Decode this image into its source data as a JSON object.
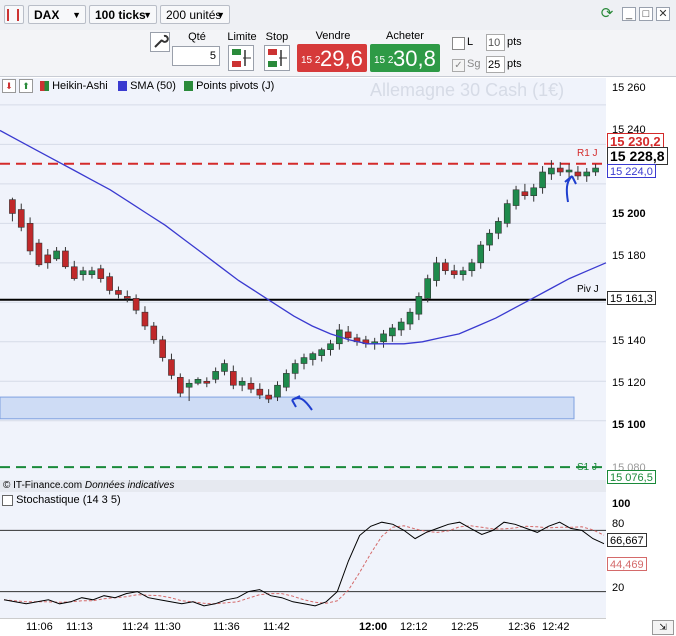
{
  "toolbar": {
    "symbol": "DAX",
    "interval": "100 ticks",
    "units": "200 unités"
  },
  "order": {
    "qty_label": "Qté",
    "qty_value": "5",
    "limit_label": "Limite",
    "stop_label": "Stop",
    "sell_label": "Vendre",
    "sell_prefix": "15 2",
    "sell_price": "29,6",
    "buy_label": "Acheter",
    "buy_prefix": "15 2",
    "buy_price": "30,8",
    "l_label": "L",
    "l_value": "10",
    "l_unit": "pts",
    "sg_label": "Sg",
    "sg_value": "25",
    "sg_unit": "pts"
  },
  "chart": {
    "watermark": "Allemagne 30 Cash (1€)",
    "legend": [
      "Heikin-Ashi",
      "SMA (50)",
      "Points pivots (J)"
    ],
    "copyright": "© IT-Finance.com",
    "copyright_note": "Données indicatives",
    "r1_label": "R1 J",
    "piv_label": "Piv J",
    "s1_label": "S1 J",
    "price_ticks": [
      "15 260",
      "15 240",
      "15 200",
      "15 180",
      "15 140",
      "15 120",
      "15 100",
      "15 080"
    ],
    "tag_last": "15 228,8",
    "tag_r1": "15 230,2",
    "tag_sma": "15 224,0",
    "tag_piv": "15 161,3",
    "tag_s1": "15 076,5",
    "colors": {
      "up": "#1e8a4c",
      "down": "#c0282a",
      "sma": "#3a3ad0",
      "pivot_r1": "#d42a2a",
      "pivot_s1": "#1a8a3a"
    }
  },
  "stoch": {
    "title": "Stochastique (14 3 5)",
    "ticks": [
      "100",
      "80",
      "20"
    ],
    "tag_k": "66,667",
    "tag_d": "44,469"
  },
  "x_ticks": [
    "11:06",
    "11:13",
    "11:24",
    "11:30",
    "11:36",
    "11:42",
    "12:00",
    "12:12",
    "12:25",
    "12:36",
    "12:42"
  ],
  "chart_data": {
    "type": "candlestick",
    "title": "Allemagne 30 Cash (1€)",
    "y_range": [
      15070,
      15265
    ],
    "ohlc": [
      [
        15212,
        15213,
        15201,
        15205
      ],
      [
        15207,
        15210,
        15196,
        15198
      ],
      [
        15200,
        15203,
        15184,
        15186
      ],
      [
        15190,
        15192,
        15178,
        15179
      ],
      [
        15184,
        15187,
        15177,
        15180
      ],
      [
        15182,
        15188,
        15181,
        15186
      ],
      [
        15186,
        15188,
        15177,
        15178
      ],
      [
        15178,
        15181,
        15171,
        15172
      ],
      [
        15174,
        15178,
        15171,
        15176
      ],
      [
        15174,
        15178,
        15172,
        15176
      ],
      [
        15177,
        15179,
        15170,
        15172
      ],
      [
        15173,
        15175,
        15164,
        15166
      ],
      [
        15166,
        15168,
        15162,
        15164
      ],
      [
        15163,
        15166,
        15160,
        15162
      ],
      [
        15162,
        15164,
        15154,
        15156
      ],
      [
        15155,
        15158,
        15146,
        15148
      ],
      [
        15148,
        15150,
        15139,
        15141
      ],
      [
        15141,
        15143,
        15130,
        15132
      ],
      [
        15131,
        15134,
        15121,
        15123
      ],
      [
        15122,
        15124,
        15112,
        15114
      ],
      [
        15117,
        15121,
        15110,
        15119
      ],
      [
        15119,
        15122,
        15118,
        15121
      ],
      [
        15120,
        15122,
        15117,
        15119
      ],
      [
        15121,
        15127,
        15119,
        15125
      ],
      [
        15125,
        15131,
        15123,
        15129
      ],
      [
        15125,
        15128,
        15116,
        15118
      ],
      [
        15118,
        15122,
        15115,
        15120
      ],
      [
        15119,
        15122,
        15114,
        15116
      ],
      [
        15116,
        15119,
        15111,
        15113
      ],
      [
        15113,
        15116,
        15109,
        15111
      ],
      [
        15112,
        15120,
        15110,
        15118
      ],
      [
        15117,
        15126,
        15115,
        15124
      ],
      [
        15124,
        15131,
        15121,
        15129
      ],
      [
        15129,
        15134,
        15126,
        15132
      ],
      [
        15131,
        15135,
        15128,
        15134
      ],
      [
        15133,
        15137,
        15130,
        15136
      ],
      [
        15136,
        15141,
        15133,
        15139
      ],
      [
        15139,
        15149,
        15136,
        15146
      ],
      [
        15145,
        15148,
        15140,
        15142
      ],
      [
        15142,
        15144,
        15138,
        15140
      ],
      [
        15141,
        15143,
        15137,
        15139
      ],
      [
        15139,
        15142,
        15136,
        15140
      ],
      [
        15140,
        15146,
        15137,
        15144
      ],
      [
        15143,
        15149,
        15140,
        15147
      ],
      [
        15146,
        15152,
        15143,
        15150
      ],
      [
        15149,
        15157,
        15146,
        15155
      ],
      [
        15154,
        15165,
        15151,
        15163
      ],
      [
        15162,
        15174,
        15160,
        15172
      ],
      [
        15171,
        15183,
        15168,
        15180
      ],
      [
        15180,
        15182,
        15174,
        15176
      ],
      [
        15176,
        15179,
        15172,
        15174
      ],
      [
        15174,
        15178,
        15171,
        15176
      ],
      [
        15176,
        15182,
        15173,
        15180
      ],
      [
        15180,
        15191,
        15177,
        15189
      ],
      [
        15189,
        15197,
        15186,
        15195
      ],
      [
        15195,
        15203,
        15192,
        15201
      ],
      [
        15200,
        15212,
        15198,
        15210
      ],
      [
        15209,
        15219,
        15207,
        15217
      ],
      [
        15216,
        15220,
        15212,
        15214
      ],
      [
        15214,
        15220,
        15211,
        15218
      ],
      [
        15218,
        15229,
        15215,
        15226
      ],
      [
        15225,
        15232,
        15222,
        15228
      ],
      [
        15228,
        15231,
        15224,
        15226
      ],
      [
        15226,
        15230,
        15223,
        15227
      ],
      [
        15226,
        15229,
        15222,
        15224
      ],
      [
        15224,
        15228,
        15221,
        15226
      ],
      [
        15226,
        15230,
        15224,
        15228
      ]
    ],
    "sma_50": [
      15247,
      15242,
      15237,
      15232,
      15227,
      15222,
      15217,
      15211,
      15205,
      15199,
      15192,
      15185,
      15178,
      15171,
      15165,
      15159,
      15153,
      15148,
      15144,
      15141,
      15139,
      15139,
      15139,
      15140,
      15142,
      15144,
      15148,
      15152,
      15157,
      15162,
      15167,
      15172,
      15176,
      15180
    ],
    "pivots": {
      "R1": 15230.2,
      "Piv": 15161.3,
      "S1": 15076.5
    },
    "stochastic": {
      "k_last": 66.667,
      "d_last": 44.469,
      "levels": [
        80,
        20
      ]
    },
    "last_price": 15228.8
  }
}
